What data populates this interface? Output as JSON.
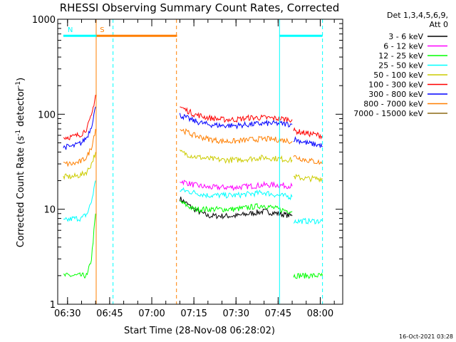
{
  "chart_data": {
    "type": "line",
    "title": "RHESSI Observing Summary Count Rates, Corrected",
    "xlabel": "Start Time (28-Nov-08 06:28:02)",
    "ylabel_main": "Corrected Count Rate (s",
    "ylabel_sup1": "-1",
    "ylabel_mid": " detector",
    "ylabel_sup2": "-1",
    "ylabel_end": ")",
    "yscale": "log",
    "ylim": [
      1,
      1000
    ],
    "xlim_min": [
      6.5,
      63
    ],
    "y_ticks": [
      {
        "v": 1,
        "label": "1"
      },
      {
        "v": 10,
        "label": "10"
      },
      {
        "v": 100,
        "label": "100"
      },
      {
        "v": 1000,
        "label": "1000"
      }
    ],
    "x_ticks": [
      {
        "v": 30,
        "label": "06:30"
      },
      {
        "v": 45,
        "label": "06:45"
      },
      {
        "v": 60,
        "label": "07:00"
      },
      {
        "v": 75,
        "label": "07:15"
      },
      {
        "v": 90,
        "label": "07:30"
      },
      {
        "v": 105,
        "label": "07:45"
      },
      {
        "v": 120,
        "label": "08:00"
      }
    ],
    "legend": {
      "header1": "Det 1,3,4,5,6,9,",
      "header2": "Att 0",
      "entries": [
        {
          "label": "3 - 6 keV",
          "color": "#000000"
        },
        {
          "label": "6 - 12 keV",
          "color": "#ff00ff"
        },
        {
          "label": "12 - 25 keV",
          "color": "#00ff00"
        },
        {
          "label": "25 - 50 keV",
          "color": "#00ffff"
        },
        {
          "label": "50 - 100 keV",
          "color": "#cccc00"
        },
        {
          "label": "100 - 300 keV",
          "color": "#ff0000"
        },
        {
          "label": "300 - 800 keV",
          "color": "#0000ff"
        },
        {
          "label": "800 - 7000 keV",
          "color": "#ff7f00"
        },
        {
          "label": "7000 - 15000 keV",
          "color": "#8b6914"
        }
      ]
    },
    "flags": [
      {
        "label": "S",
        "color": "#ff7f00",
        "x_start": 40,
        "x_end": 69,
        "level": 670
      },
      {
        "label": "N",
        "color": "#00ffff",
        "x_start": 28.5,
        "x_end": 40.3,
        "level": 670
      },
      {
        "label": "",
        "color": "#00ffff",
        "x_start": 105.5,
        "x_end": 120.8,
        "level": 670
      }
    ],
    "vlines": [
      {
        "x": 40.2,
        "color": "#ff7f00",
        "style": "solid"
      },
      {
        "x": 46.2,
        "color": "#00ffff",
        "style": "dashed"
      },
      {
        "x": 68.8,
        "color": "#ff7f00",
        "style": "dashed"
      },
      {
        "x": 105.5,
        "color": "#00ffff",
        "style": "solid"
      },
      {
        "x": 120.8,
        "color": "#00ffff",
        "style": "dashed"
      }
    ],
    "series": [
      {
        "name": "3 - 6 keV",
        "color": "#000000",
        "segments": [
          {
            "x": [
              70,
              75,
              80,
              85,
              90,
              95,
              100,
              105,
              110
            ],
            "y": [
              13,
              10,
              8.5,
              8.5,
              8.5,
              9,
              9.5,
              9,
              8.5
            ]
          }
        ]
      },
      {
        "name": "6 - 12 keV",
        "color": "#ff00ff",
        "segments": [
          {
            "x": [
              70,
              75,
              80,
              85,
              90,
              95,
              100,
              105,
              110
            ],
            "y": [
              20,
              18,
              17,
              17,
              17,
              17.5,
              18,
              18,
              17.5
            ]
          }
        ]
      },
      {
        "name": "12 - 25 keV",
        "color": "#00ff00",
        "segments": [
          {
            "x": [
              28.5,
              32,
              35,
              37,
              38.5,
              40
            ],
            "y": [
              2,
              2,
              2,
              2,
              3,
              9
            ]
          },
          {
            "x": [
              70,
              75,
              80,
              85,
              90,
              95,
              100,
              105,
              110
            ],
            "y": [
              12,
              10,
              10,
              10,
              10,
              10.5,
              11,
              10,
              9.5
            ]
          },
          {
            "x": [
              110.5,
              115,
              120,
              120.8
            ],
            "y": [
              2,
              2,
              2,
              2
            ]
          }
        ]
      },
      {
        "name": "25 - 50 keV",
        "color": "#00ffff",
        "segments": [
          {
            "x": [
              28.5,
              32,
              35,
              37,
              38.5,
              40
            ],
            "y": [
              7.5,
              8,
              8,
              9,
              12,
              20
            ]
          },
          {
            "x": [
              70,
              75,
              80,
              85,
              90,
              95,
              100,
              105,
              110
            ],
            "y": [
              16,
              15,
              14,
              14,
              14,
              14.5,
              15,
              14,
              13.5
            ]
          },
          {
            "x": [
              110.5,
              115,
              120,
              120.8
            ],
            "y": [
              7.5,
              7.5,
              7.5,
              7.5
            ]
          }
        ]
      },
      {
        "name": "50 - 100 keV",
        "color": "#cccc00",
        "segments": [
          {
            "x": [
              28.5,
              32,
              35,
              37,
              38.5,
              40
            ],
            "y": [
              22,
              22,
              23,
              25,
              30,
              40
            ]
          },
          {
            "x": [
              70,
              75,
              80,
              85,
              90,
              95,
              100,
              105,
              110
            ],
            "y": [
              40,
              36,
              34,
              33,
              33,
              34,
              35,
              34,
              33
            ]
          },
          {
            "x": [
              110.5,
              115,
              120,
              120.8
            ],
            "y": [
              22,
              21,
              21,
              21
            ]
          }
        ]
      },
      {
        "name": "100 - 300 keV",
        "color": "#ff0000",
        "segments": [
          {
            "x": [
              28.5,
              32,
              35,
              37,
              38.5,
              40
            ],
            "y": [
              57,
              58,
              62,
              72,
              95,
              160
            ]
          },
          {
            "x": [
              70,
              75,
              80,
              85,
              90,
              95,
              100,
              105,
              110
            ],
            "y": [
              120,
              100,
              92,
              88,
              88,
              92,
              92,
              90,
              88
            ]
          },
          {
            "x": [
              110.5,
              115,
              120,
              120.8
            ],
            "y": [
              67,
              63,
              60,
              58
            ]
          }
        ]
      },
      {
        "name": "300 - 800 keV",
        "color": "#0000ff",
        "segments": [
          {
            "x": [
              28.5,
              32,
              35,
              37,
              38.5,
              40
            ],
            "y": [
              45,
              46,
              50,
              58,
              75,
              120
            ]
          },
          {
            "x": [
              70,
              75,
              80,
              85,
              90,
              95,
              100,
              105,
              110
            ],
            "y": [
              98,
              85,
              78,
              76,
              76,
              78,
              80,
              80,
              78
            ]
          },
          {
            "x": [
              110.5,
              115,
              120,
              120.8
            ],
            "y": [
              55,
              50,
              47,
              46
            ]
          }
        ]
      },
      {
        "name": "800 - 7000 keV",
        "color": "#ff7f00",
        "segments": [
          {
            "x": [
              28.5,
              32,
              35,
              37,
              38.5,
              40
            ],
            "y": [
              30,
              30,
              32,
              36,
              45,
              70
            ]
          },
          {
            "x": [
              70,
              75,
              80,
              85,
              90,
              95,
              100,
              105,
              110
            ],
            "y": [
              70,
              60,
              55,
              52,
              52,
              54,
              55,
              54,
              52
            ]
          },
          {
            "x": [
              110.5,
              115,
              120,
              120.8
            ],
            "y": [
              36,
              33,
              31,
              30
            ]
          }
        ]
      },
      {
        "name": "7000 - 15000 keV",
        "color": "#8b6914",
        "segments": []
      }
    ]
  },
  "footer": {
    "timestamp": "16-Oct-2021 03:28"
  }
}
